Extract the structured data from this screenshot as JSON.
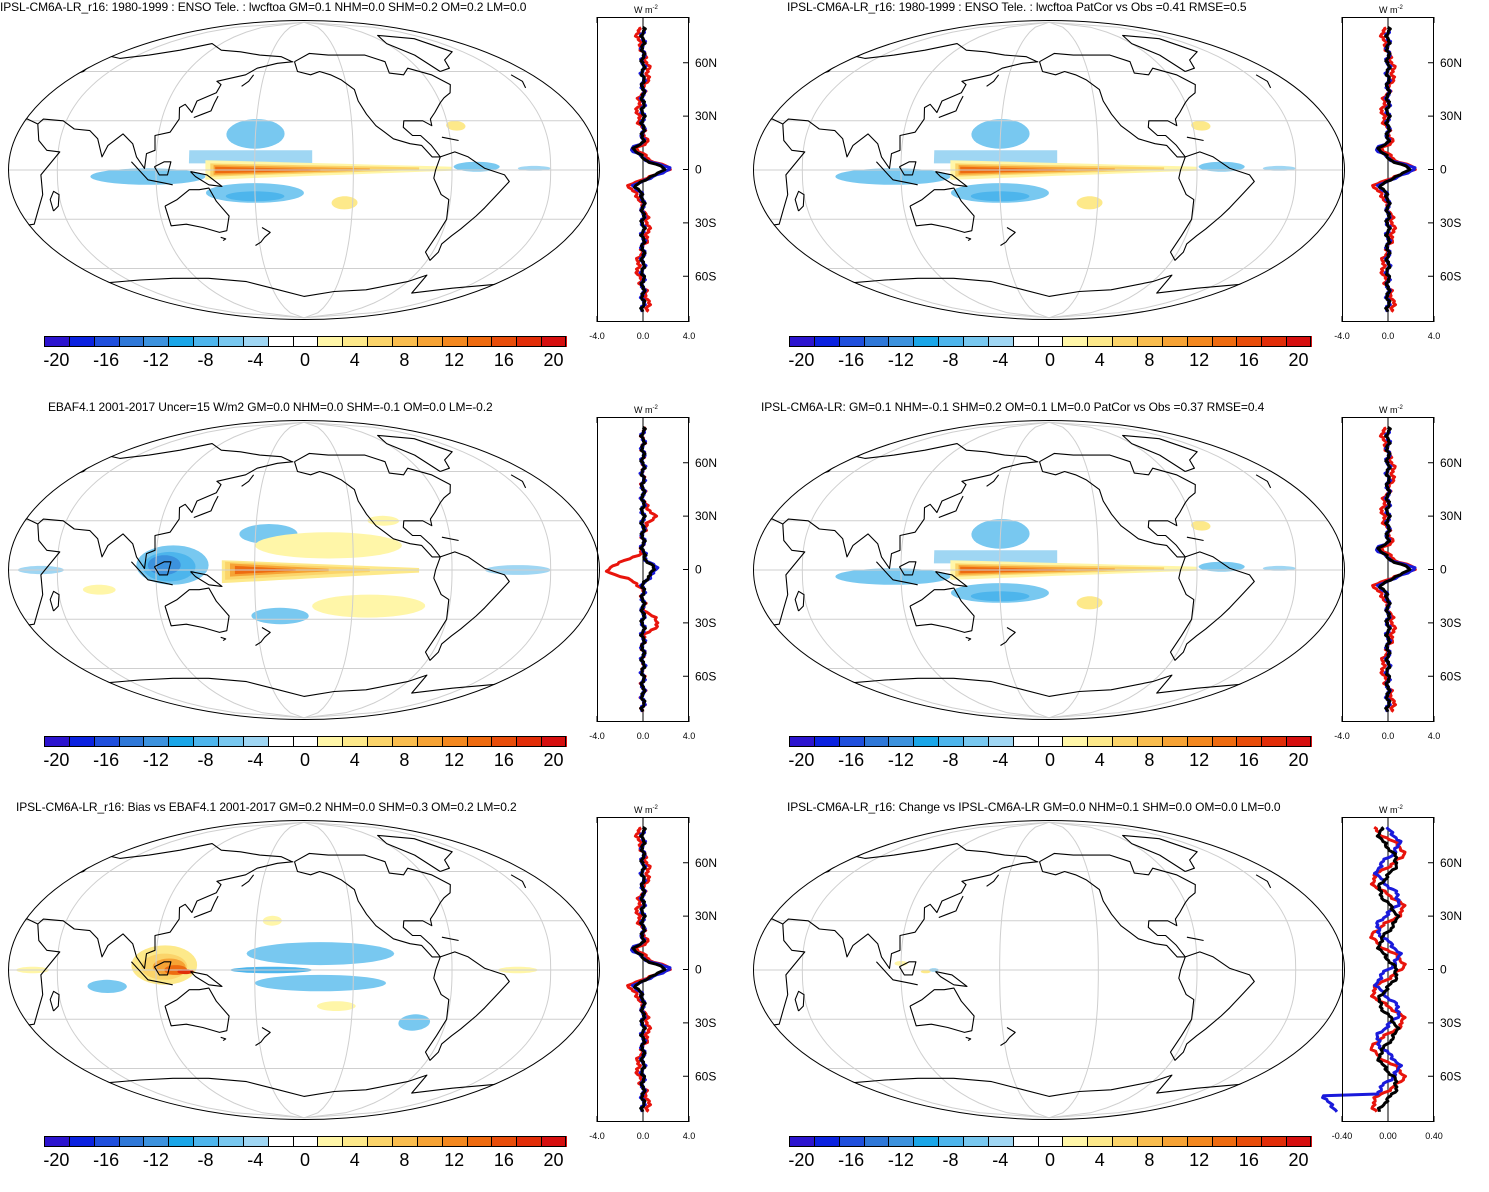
{
  "panels": [
    {
      "title": "IPSL-CM6A-LR_r16: 1980-1999 : ENSO Tele. : lwcftoa GM=0.1 NHM=0.0 SHM=0.2 OM=0.2 LM=0.0",
      "units": "W m",
      "units_exp": "-2",
      "profile_ticks": [
        "-4.0",
        "0.0",
        "4.0"
      ],
      "lat_labels": [
        "60N",
        "30N",
        "0",
        "30S",
        "60S"
      ],
      "colorbar_labels": [
        "-20",
        "-16",
        "-12",
        "-8",
        "-4",
        "0",
        "4",
        "8",
        "12",
        "16",
        "20"
      ],
      "pattern": "model"
    },
    {
      "title": "IPSL-CM6A-LR_r16: 1980-1999 : ENSO Tele. : lwcftoa PatCor vs Obs =0.41 RMSE=0.5",
      "units": "W m",
      "units_exp": "-2",
      "profile_ticks": [
        "-4.0",
        "0.0",
        "4.0"
      ],
      "lat_labels": [
        "60N",
        "30N",
        "0",
        "30S",
        "60S"
      ],
      "colorbar_labels": [
        "-20",
        "-16",
        "-12",
        "-8",
        "-4",
        "0",
        "4",
        "8",
        "12",
        "16",
        "20"
      ],
      "pattern": "model"
    },
    {
      "title": "EBAF4.1 2001-2017 Uncer=15 W/m2 GM=0.0 NHM=0.0 SHM=-0.1 OM=0.0 LM=-0.2",
      "units": "W m",
      "units_exp": "-2",
      "profile_ticks": [
        "-4.0",
        "0.0",
        "4.0"
      ],
      "lat_labels": [
        "60N",
        "30N",
        "0",
        "30S",
        "60S"
      ],
      "colorbar_labels": [
        "-20",
        "-16",
        "-12",
        "-8",
        "-4",
        "0",
        "4",
        "8",
        "12",
        "16",
        "20"
      ],
      "pattern": "obs"
    },
    {
      "title": "IPSL-CM6A-LR: GM=0.1 NHM=-0.1 SHM=0.2 OM=0.1 LM=0.0 PatCor vs Obs =0.37 RMSE=0.4",
      "units": "W m",
      "units_exp": "-2",
      "profile_ticks": [
        "-4.0",
        "0.0",
        "4.0"
      ],
      "lat_labels": [
        "60N",
        "30N",
        "0",
        "30S",
        "60S"
      ],
      "colorbar_labels": [
        "-20",
        "-16",
        "-12",
        "-8",
        "-4",
        "0",
        "4",
        "8",
        "12",
        "16",
        "20"
      ],
      "pattern": "model"
    },
    {
      "title": "IPSL-CM6A-LR_r16: Bias vs EBAF4.1 2001-2017 GM=0.2 NHM=0.0 SHM=0.3 OM=0.2 LM=0.2",
      "units": "W m",
      "units_exp": "-2",
      "profile_ticks": [
        "-4.0",
        "0.0",
        "4.0"
      ],
      "lat_labels": [
        "60N",
        "30N",
        "0",
        "30S",
        "60S"
      ],
      "colorbar_labels": [
        "-20",
        "-16",
        "-12",
        "-8",
        "-4",
        "0",
        "4",
        "8",
        "12",
        "16",
        "20"
      ],
      "pattern": "bias"
    },
    {
      "title": "IPSL-CM6A-LR_r16: Change vs IPSL-CM6A-LR GM=0.0 NHM=0.1 SHM=0.0 OM=0.0 LM=0.0",
      "units": "W m",
      "units_exp": "-2",
      "profile_ticks": [
        "-0.40",
        "0.00",
        "0.40"
      ],
      "lat_labels": [
        "60N",
        "30N",
        "0",
        "30S",
        "60S"
      ],
      "colorbar_labels": [
        "-20",
        "-16",
        "-12",
        "-8",
        "-4",
        "0",
        "4",
        "8",
        "12",
        "16",
        "20"
      ],
      "pattern": "change"
    }
  ],
  "colorbar_colors": [
    "#2c14cf",
    "#0b22e0",
    "#1f4fdd",
    "#2f78d8",
    "#3c92de",
    "#1aa6e8",
    "#4db5ec",
    "#78c8f0",
    "#9fd6f3",
    "#ffffff",
    "#ffffff",
    "#fff6a8",
    "#fde98a",
    "#fbd46a",
    "#f9bd4e",
    "#f6a335",
    "#f3881f",
    "#ee6b10",
    "#e84d0a",
    "#e12d08",
    "#d60f0f"
  ],
  "profile_colors": {
    "ensemble": "#1a1adb",
    "member": "#e8140c",
    "mean": "#000000"
  }
}
